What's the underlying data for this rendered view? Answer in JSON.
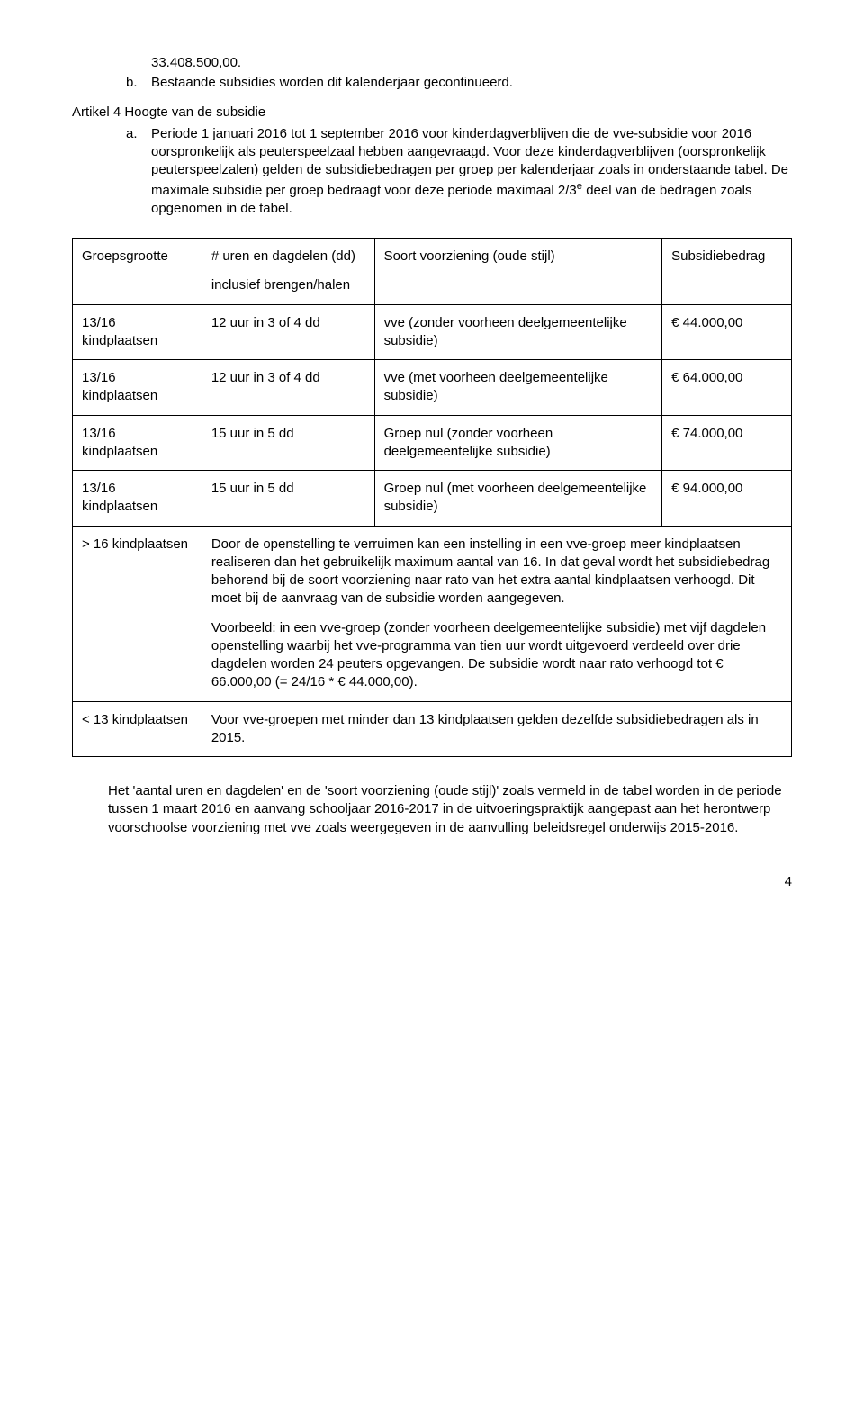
{
  "intro": {
    "first_line": "33.408.500,00.",
    "item_b_marker": "b.",
    "item_b_text": "Bestaande subsidies worden dit kalenderjaar gecontinueerd."
  },
  "artikel4": "Artikel 4 Hoogte van de subsidie",
  "item_a_marker": "a.",
  "item_a_text": "Periode 1 januari 2016 tot 1 september 2016 voor kinderdagverblijven die de vve-subsidie voor 2016 oorspronkelijk als peuterspeelzaal hebben aangevraagd. Voor deze kinderdagverblijven (oorspronkelijk peuterspeelzalen) gelden de subsidiebedragen per groep per kalenderjaar zoals in onderstaande tabel. De maximale subsidie per groep bedraagt voor deze periode maximaal 2/3",
  "item_a_sup": "e",
  "item_a_text2": " deel van de bedragen zoals opgenomen in de tabel.",
  "table": {
    "header": {
      "c1": "Groepsgrootte",
      "c2a": "# uren en dagdelen (dd)",
      "c2b": "inclusief brengen/halen",
      "c3": "Soort voorziening (oude stijl)",
      "c4": "Subsidiebedrag"
    },
    "rows": [
      {
        "c1": "13/16 kindplaatsen",
        "c2": "12 uur in 3 of 4 dd",
        "c3": "vve (zonder voorheen deelgemeentelijke subsidie)",
        "c4": "€ 44.000,00"
      },
      {
        "c1": "13/16 kindplaatsen",
        "c2": "12 uur in 3 of 4 dd",
        "c3": "vve (met voorheen deelgemeentelijke subsidie)",
        "c4": "€ 64.000,00"
      },
      {
        "c1": "13/16 kindplaatsen",
        "c2": "15 uur in 5 dd",
        "c3": "Groep nul (zonder voorheen deelgemeentelijke subsidie)",
        "c4": "€ 74.000,00"
      },
      {
        "c1": "13/16 kindplaatsen",
        "c2": "15 uur in 5 dd",
        "c3": "Groep nul (met voorheen deelgemeentelijke subsidie)",
        "c4": "€ 94.000,00"
      }
    ],
    "span_rows": [
      {
        "c1": "> 16 kindplaatsen",
        "p1": "Door de openstelling te verruimen kan een instelling in een vve-groep meer kindplaatsen realiseren dan het gebruikelijk maximum aantal van 16. In dat geval wordt het subsidiebedrag behorend bij de soort voorziening naar rato van het extra aantal kindplaatsen verhoogd. Dit moet bij de aanvraag van de subsidie worden aangegeven.",
        "p2": "Voorbeeld: in een vve-groep (zonder voorheen deelgemeentelijke subsidie) met vijf dagdelen openstelling waarbij het vve-programma van tien uur wordt uitgevoerd verdeeld over drie dagdelen worden 24 peuters opgevangen. De subsidie wordt naar rato verhoogd tot € 66.000,00 (= 24/16 * € 44.000,00)."
      },
      {
        "c1": "< 13 kindplaatsen",
        "p1": "Voor vve-groepen met minder dan 13 kindplaatsen gelden dezelfde subsidiebedragen als in 2015."
      }
    ]
  },
  "footer_para": "Het 'aantal uren en dagdelen' en de 'soort voorziening (oude stijl)' zoals vermeld in de tabel worden in de periode tussen 1 maart 2016 en aanvang schooljaar 2016-2017 in de uitvoeringspraktijk aangepast aan het herontwerp voorschoolse voorziening met vve zoals weergegeven in de aanvulling beleidsregel onderwijs 2015-2016.",
  "page_number": "4",
  "colwidths": [
    "18%",
    "24%",
    "40%",
    "18%"
  ]
}
